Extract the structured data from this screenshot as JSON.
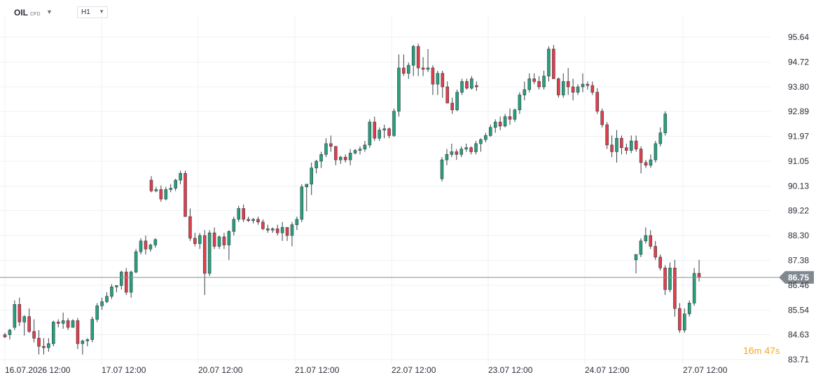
{
  "header": {
    "symbol": "OIL",
    "symbol_type": "CFD",
    "timeframe": "H1"
  },
  "timer": {
    "minutes": "16",
    "m_unit": "m",
    "seconds": "47",
    "s_unit": "s"
  },
  "colors": {
    "up": "#26a17b",
    "down": "#e03e4b",
    "price_line": "#8a9097",
    "price_badge": "#808890",
    "timer": "#f5a623"
  },
  "chart_data": {
    "type": "candlestick",
    "title": "",
    "xlabel": "",
    "ylabel": "",
    "grid": true,
    "ylim": [
      83.2,
      96.2
    ],
    "y_ticks": [
      "95.64",
      "94.72",
      "93.80",
      "92.89",
      "91.97",
      "91.05",
      "90.13",
      "89.22",
      "88.30",
      "87.38",
      "86.46",
      "85.54",
      "84.63",
      "83.71"
    ],
    "x_ticks": [
      "16.07.2026 12:00",
      "17.07 12:00",
      "20.07 12:00",
      "21.07 12:00",
      "22.07 12:00",
      "23.07 12:00",
      "24.07 12:00",
      "27.07 12:00"
    ],
    "current_price": "86.75",
    "candles": [
      [
        84.63,
        84.7,
        84.5,
        84.55
      ],
      [
        84.63,
        84.85,
        84.45,
        84.8
      ],
      [
        84.9,
        85.9,
        84.8,
        85.75
      ],
      [
        85.75,
        86.0,
        84.95,
        85.1
      ],
      [
        85.1,
        85.35,
        84.6,
        85.3
      ],
      [
        85.3,
        85.6,
        84.7,
        84.75
      ],
      [
        84.75,
        85.2,
        84.35,
        84.5
      ],
      [
        84.5,
        84.8,
        83.9,
        84.2
      ],
      [
        84.2,
        84.5,
        83.9,
        84.15
      ],
      [
        84.15,
        84.5,
        84.0,
        84.3
      ],
      [
        84.3,
        85.15,
        84.2,
        85.1
      ],
      [
        85.1,
        85.2,
        84.9,
        85.05
      ],
      [
        85.05,
        85.45,
        84.85,
        85.15
      ],
      [
        85.15,
        85.25,
        84.8,
        84.9
      ],
      [
        84.9,
        85.2,
        84.9,
        85.15
      ],
      [
        85.15,
        85.25,
        84.1,
        84.3
      ],
      [
        84.3,
        84.45,
        83.9,
        84.4
      ],
      [
        84.4,
        84.5,
        84.2,
        84.45
      ],
      [
        84.45,
        85.3,
        84.35,
        85.2
      ],
      [
        85.2,
        85.8,
        85.1,
        85.7
      ],
      [
        85.7,
        86.0,
        85.55,
        85.85
      ],
      [
        85.85,
        86.2,
        85.8,
        86.05
      ],
      [
        86.05,
        86.5,
        85.95,
        86.4
      ],
      [
        86.4,
        86.45,
        86.2,
        86.45
      ],
      [
        86.45,
        87.0,
        86.3,
        86.95
      ],
      [
        86.95,
        87.1,
        86.1,
        86.2
      ],
      [
        86.2,
        87.0,
        86.0,
        86.95
      ],
      [
        86.95,
        87.8,
        86.9,
        87.7
      ],
      [
        87.7,
        88.2,
        87.6,
        88.1
      ],
      [
        88.1,
        88.3,
        87.6,
        87.8
      ],
      [
        87.8,
        88.0,
        87.7,
        87.95
      ],
      [
        87.95,
        88.2,
        87.85,
        88.15
      ],
      [
        90.35,
        90.5,
        89.9,
        89.95
      ],
      [
        89.95,
        90.1,
        89.9,
        90.0
      ],
      [
        90.0,
        90.15,
        89.55,
        89.65
      ],
      [
        89.65,
        90.1,
        89.6,
        90.0
      ],
      [
        90.0,
        90.2,
        89.9,
        90.05
      ],
      [
        90.05,
        90.4,
        89.95,
        90.35
      ],
      [
        90.35,
        90.7,
        90.2,
        90.6
      ],
      [
        90.6,
        90.7,
        89.0,
        89.0
      ],
      [
        89.0,
        89.3,
        88.1,
        88.2
      ],
      [
        88.2,
        88.4,
        87.9,
        88.0
      ],
      [
        88.0,
        88.4,
        87.8,
        88.3
      ],
      [
        88.3,
        88.5,
        86.1,
        86.9
      ],
      [
        86.9,
        88.5,
        86.8,
        88.4
      ],
      [
        88.4,
        88.6,
        87.8,
        87.9
      ],
      [
        87.9,
        88.3,
        87.8,
        88.25
      ],
      [
        88.25,
        88.4,
        87.8,
        87.95
      ],
      [
        87.95,
        88.5,
        87.4,
        88.45
      ],
      [
        88.45,
        89.0,
        88.3,
        88.9
      ],
      [
        88.9,
        89.4,
        88.8,
        89.3
      ],
      [
        89.3,
        89.45,
        88.8,
        88.9
      ],
      [
        88.9,
        89.0,
        88.8,
        88.85
      ],
      [
        88.85,
        88.95,
        88.75,
        88.9
      ],
      [
        88.9,
        89.0,
        88.7,
        88.8
      ],
      [
        88.8,
        88.9,
        88.5,
        88.55
      ],
      [
        88.55,
        88.7,
        88.4,
        88.5
      ],
      [
        88.5,
        88.6,
        88.4,
        88.55
      ],
      [
        88.55,
        88.7,
        88.3,
        88.4
      ],
      [
        88.4,
        88.8,
        88.1,
        88.6
      ],
      [
        88.6,
        88.6,
        88.1,
        88.3
      ],
      [
        88.3,
        88.8,
        87.9,
        88.7
      ],
      [
        88.7,
        89.0,
        88.5,
        88.9
      ],
      [
        88.9,
        90.2,
        88.8,
        90.1
      ],
      [
        90.1,
        90.2,
        89.2,
        90.2
      ],
      [
        90.2,
        91.0,
        89.8,
        90.8
      ],
      [
        90.8,
        91.1,
        90.6,
        91.05
      ],
      [
        91.05,
        91.4,
        90.8,
        91.3
      ],
      [
        91.3,
        91.9,
        91.2,
        91.7
      ],
      [
        91.7,
        92.0,
        91.4,
        91.6
      ],
      [
        91.6,
        91.6,
        90.9,
        91.1
      ],
      [
        91.1,
        91.25,
        90.95,
        91.2
      ],
      [
        91.2,
        91.3,
        91.0,
        91.1
      ],
      [
        91.1,
        91.5,
        90.9,
        91.35
      ],
      [
        91.35,
        91.5,
        91.3,
        91.45
      ],
      [
        91.45,
        91.6,
        91.3,
        91.5
      ],
      [
        91.5,
        91.8,
        91.4,
        91.65
      ],
      [
        91.65,
        92.6,
        91.55,
        92.5
      ],
      [
        92.5,
        92.7,
        91.8,
        91.9
      ],
      [
        91.9,
        92.3,
        91.8,
        92.2
      ],
      [
        92.2,
        92.4,
        91.9,
        92.25
      ],
      [
        92.25,
        92.3,
        91.9,
        92.0
      ],
      [
        92.0,
        93.0,
        91.95,
        92.9
      ],
      [
        92.9,
        95.0,
        92.7,
        94.5
      ],
      [
        94.5,
        95.0,
        94.2,
        94.3
      ],
      [
        94.3,
        94.7,
        94.1,
        94.6
      ],
      [
        94.6,
        95.35,
        94.2,
        95.3
      ],
      [
        95.3,
        95.4,
        94.2,
        94.5
      ],
      [
        94.5,
        94.9,
        94.2,
        94.45
      ],
      [
        94.45,
        95.2,
        94.35,
        94.5
      ],
      [
        94.5,
        94.6,
        93.5,
        93.9
      ],
      [
        93.9,
        94.4,
        93.5,
        94.3
      ],
      [
        94.3,
        94.4,
        93.4,
        93.8
      ],
      [
        93.8,
        94.0,
        93.2,
        93.2
      ],
      [
        93.2,
        93.4,
        92.8,
        92.95
      ],
      [
        92.95,
        93.7,
        92.9,
        93.6
      ],
      [
        93.6,
        94.1,
        93.5,
        94.0
      ],
      [
        94.0,
        94.1,
        93.7,
        93.75
      ],
      [
        93.75,
        94.2,
        93.7,
        94.1
      ],
      [
        93.85,
        94.0,
        93.65,
        93.8
      ],
      [
        90.4,
        91.2,
        90.3,
        91.1
      ],
      [
        91.1,
        91.5,
        90.9,
        91.3
      ],
      [
        91.3,
        91.7,
        91.2,
        91.4
      ],
      [
        91.4,
        91.5,
        91.1,
        91.3
      ],
      [
        91.3,
        91.6,
        91.2,
        91.5
      ],
      [
        91.5,
        91.7,
        91.4,
        91.55
      ],
      [
        91.55,
        91.6,
        91.3,
        91.4
      ],
      [
        91.4,
        91.8,
        91.3,
        91.7
      ],
      [
        91.7,
        91.9,
        91.4,
        91.85
      ],
      [
        91.85,
        92.1,
        91.75,
        92.0
      ],
      [
        92.0,
        92.4,
        91.95,
        92.3
      ],
      [
        92.3,
        92.6,
        92.1,
        92.5
      ],
      [
        92.5,
        92.7,
        92.2,
        92.35
      ],
      [
        92.35,
        92.8,
        92.3,
        92.7
      ],
      [
        92.7,
        93.0,
        92.4,
        92.6
      ],
      [
        92.6,
        93.0,
        92.5,
        92.95
      ],
      [
        92.95,
        93.6,
        92.8,
        93.5
      ],
      [
        93.5,
        94.0,
        93.3,
        93.7
      ],
      [
        93.7,
        94.3,
        93.6,
        94.1
      ],
      [
        94.1,
        94.3,
        93.9,
        94.0
      ],
      [
        94.0,
        94.2,
        93.7,
        93.8
      ],
      [
        93.8,
        94.4,
        93.7,
        94.2
      ],
      [
        94.2,
        95.3,
        94.0,
        95.2
      ],
      [
        95.2,
        95.35,
        94.2,
        94.1
      ],
      [
        94.1,
        94.15,
        93.4,
        93.5
      ],
      [
        93.5,
        94.3,
        93.4,
        94.0
      ],
      [
        94.0,
        94.5,
        93.5,
        93.8
      ],
      [
        93.8,
        94.1,
        93.3,
        93.6
      ],
      [
        93.6,
        93.9,
        93.5,
        93.8
      ],
      [
        93.8,
        94.3,
        93.6,
        93.9
      ],
      [
        93.9,
        94.0,
        93.7,
        93.85
      ],
      [
        93.85,
        94.0,
        93.5,
        93.6
      ],
      [
        93.6,
        93.75,
        92.8,
        92.9
      ],
      [
        92.9,
        93.0,
        92.3,
        92.4
      ],
      [
        92.4,
        92.5,
        91.5,
        91.65
      ],
      [
        91.65,
        92.0,
        91.2,
        91.4
      ],
      [
        91.4,
        92.2,
        91.0,
        91.9
      ],
      [
        91.9,
        92.0,
        91.3,
        91.55
      ],
      [
        91.55,
        91.7,
        91.3,
        91.45
      ],
      [
        91.45,
        92.0,
        91.35,
        91.8
      ],
      [
        91.8,
        92.0,
        91.4,
        91.5
      ],
      [
        91.5,
        91.6,
        90.6,
        91.0
      ],
      [
        91.0,
        91.1,
        90.8,
        90.9
      ],
      [
        90.9,
        91.3,
        90.8,
        91.1
      ],
      [
        91.1,
        91.8,
        91.0,
        91.7
      ],
      [
        91.7,
        92.3,
        91.6,
        92.1
      ],
      [
        92.1,
        92.9,
        92.0,
        92.8
      ],
      [
        87.4,
        87.6,
        86.9,
        87.6
      ],
      [
        87.6,
        88.2,
        87.5,
        88.1
      ],
      [
        88.1,
        88.6,
        88.0,
        88.3
      ],
      [
        88.3,
        88.5,
        87.8,
        87.9
      ],
      [
        87.9,
        88.1,
        87.4,
        87.5
      ],
      [
        87.5,
        87.6,
        87.0,
        87.1
      ],
      [
        87.1,
        87.2,
        86.1,
        86.3
      ],
      [
        86.3,
        87.3,
        86.2,
        87.1
      ],
      [
        87.1,
        87.4,
        85.3,
        85.6
      ],
      [
        85.6,
        85.8,
        84.7,
        84.8
      ],
      [
        84.8,
        85.6,
        84.7,
        85.4
      ],
      [
        85.4,
        85.9,
        85.3,
        85.8
      ],
      [
        85.8,
        87.1,
        85.7,
        86.9
      ],
      [
        86.9,
        87.4,
        86.6,
        86.75
      ]
    ]
  }
}
